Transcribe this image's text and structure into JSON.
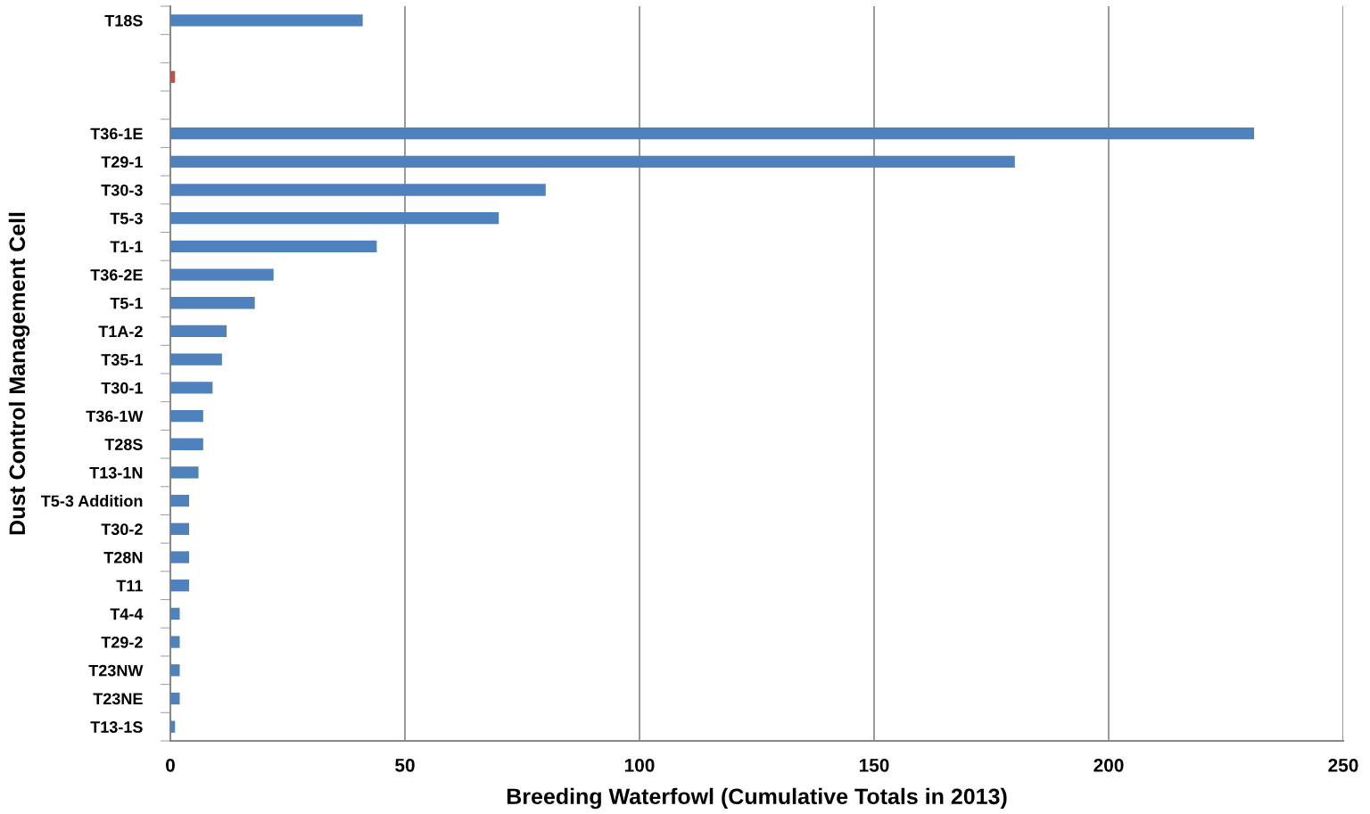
{
  "chart_data": {
    "type": "bar",
    "orientation": "horizontal",
    "xlabel": "Breeding Waterfowl (Cumulative Totals in 2013)",
    "ylabel": "Dust Control Management Cell",
    "categories": [
      "T18S",
      null,
      null,
      null,
      "T36-1E",
      "T29-1",
      "T30-3",
      "T5-3",
      "T1-1",
      "T36-2E",
      "T5-1",
      "T1A-2",
      "T35-1",
      "T30-1",
      "T36-1W",
      "T28S",
      "T13-1N",
      "T5-3 Addition",
      "T30-2",
      "T28N",
      "T11",
      "T4-4",
      "T29-2",
      "T23NW",
      "T23NE",
      "T13-1S"
    ],
    "values": [
      41,
      null,
      1,
      null,
      231,
      180,
      80,
      70,
      44,
      22,
      18,
      12,
      11,
      9,
      7,
      7,
      6,
      4,
      4,
      4,
      4,
      2,
      2,
      2,
      2,
      1
    ],
    "colors": [
      "#4f81bd",
      "#4f81bd",
      "#c0504d",
      "#4f81bd",
      "#4f81bd",
      "#4f81bd",
      "#4f81bd",
      "#4f81bd",
      "#4f81bd",
      "#4f81bd",
      "#4f81bd",
      "#4f81bd",
      "#4f81bd",
      "#4f81bd",
      "#4f81bd",
      "#4f81bd",
      "#4f81bd",
      "#4f81bd",
      "#4f81bd",
      "#4f81bd",
      "#4f81bd",
      "#4f81bd",
      "#4f81bd",
      "#4f81bd",
      "#4f81bd",
      "#4f81bd"
    ],
    "xlim": [
      0,
      250
    ],
    "xticks": [
      0,
      50,
      100,
      150,
      200,
      250
    ],
    "grid": "x"
  }
}
